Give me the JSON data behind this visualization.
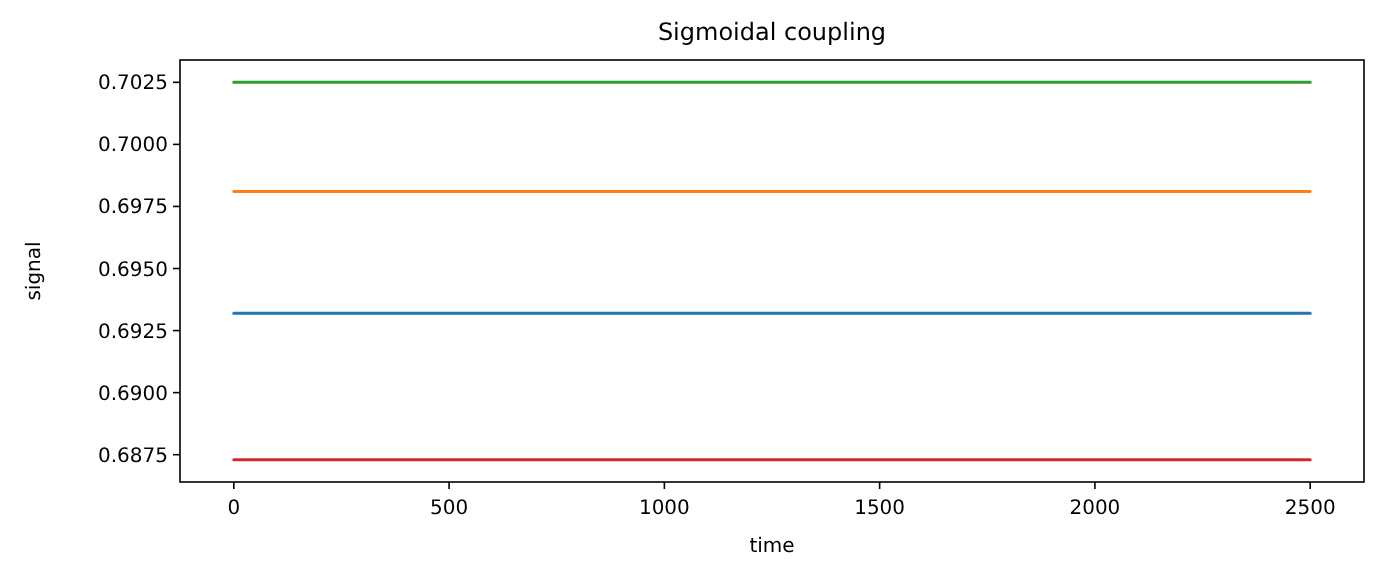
{
  "chart_data": {
    "type": "line",
    "title": "Sigmoidal coupling",
    "xlabel": "time",
    "ylabel": "signal",
    "x": [
      0,
      2500
    ],
    "series": [
      {
        "color": "#1f77b4",
        "values": [
          0.6932,
          0.6932
        ]
      },
      {
        "color": "#ff7f0e",
        "values": [
          0.6981,
          0.6981
        ]
      },
      {
        "color": "#2ca02c",
        "values": [
          0.7025,
          0.7025
        ]
      },
      {
        "color": "#d62728",
        "values": [
          0.6873,
          0.6873
        ]
      }
    ],
    "xlim": [
      -125,
      2625
    ],
    "xticks": [
      0,
      500,
      1000,
      1500,
      2000,
      2500
    ],
    "ylim": [
      0.6864,
      0.7034
    ],
    "yticks": [
      {
        "value": 0.6875,
        "label": "0.6875"
      },
      {
        "value": 0.69,
        "label": "0.6900"
      },
      {
        "value": 0.6925,
        "label": "0.6925"
      },
      {
        "value": 0.695,
        "label": "0.6950"
      },
      {
        "value": 0.6975,
        "label": "0.6975"
      },
      {
        "value": 0.7,
        "label": "0.7000"
      },
      {
        "value": 0.7025,
        "label": "0.7025"
      }
    ],
    "grid": false,
    "marker": "none",
    "line_style": "solid"
  }
}
